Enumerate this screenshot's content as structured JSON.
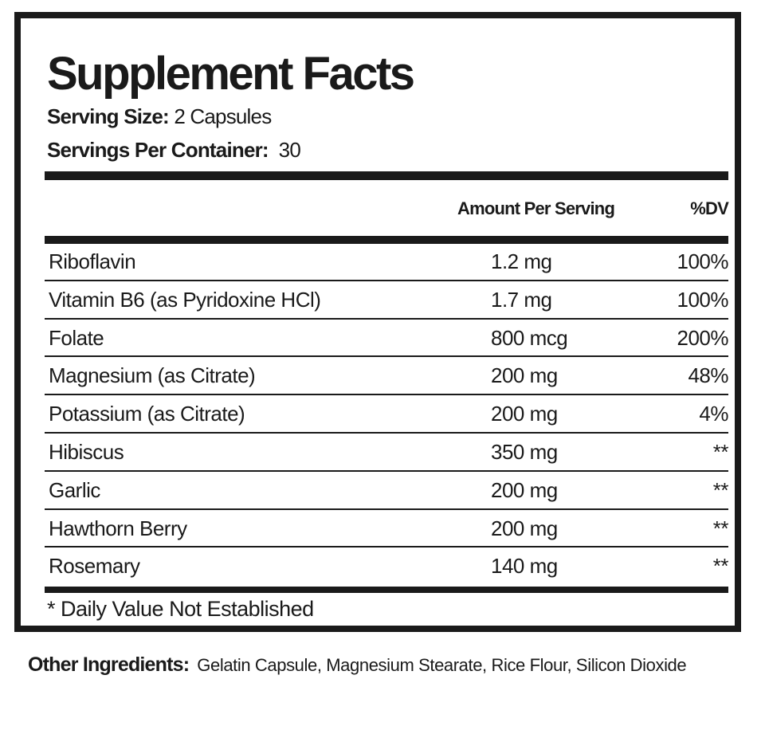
{
  "label": {
    "title": "Supplement Facts",
    "serving_size_label": "Serving Size:",
    "serving_size_value": "2 Capsules",
    "servings_per_container_label": "Servings Per Container:",
    "servings_per_container_value": "30",
    "header_amount": "Amount Per Serving",
    "header_dv": "%DV",
    "rows": [
      {
        "name": "Riboflavin",
        "amount": "1.2 mg",
        "dv": "100%"
      },
      {
        "name": "Vitamin B6 (as Pyridoxine HCl)",
        "amount": "1.7 mg",
        "dv": "100%"
      },
      {
        "name": "Folate",
        "amount": "800 mcg",
        "dv": "200%"
      },
      {
        "name": "Magnesium (as Citrate)",
        "amount": "200 mg",
        "dv": "48%"
      },
      {
        "name": "Potassium (as Citrate)",
        "amount": "200 mg",
        "dv": "4%"
      },
      {
        "name": "Hibiscus",
        "amount": "350 mg",
        "dv": "**"
      },
      {
        "name": "Garlic",
        "amount": "200 mg",
        "dv": "**"
      },
      {
        "name": "Hawthorn Berry",
        "amount": "200 mg",
        "dv": "**"
      },
      {
        "name": "Rosemary",
        "amount": "140 mg",
        "dv": "**"
      }
    ],
    "footnote": "* Daily Value Not Established"
  },
  "other_ingredients": {
    "label": "Other Ingredients:",
    "value": "Gelatin Capsule, Magnesium Stearate, Rice Flour, Silicon Dioxide"
  }
}
